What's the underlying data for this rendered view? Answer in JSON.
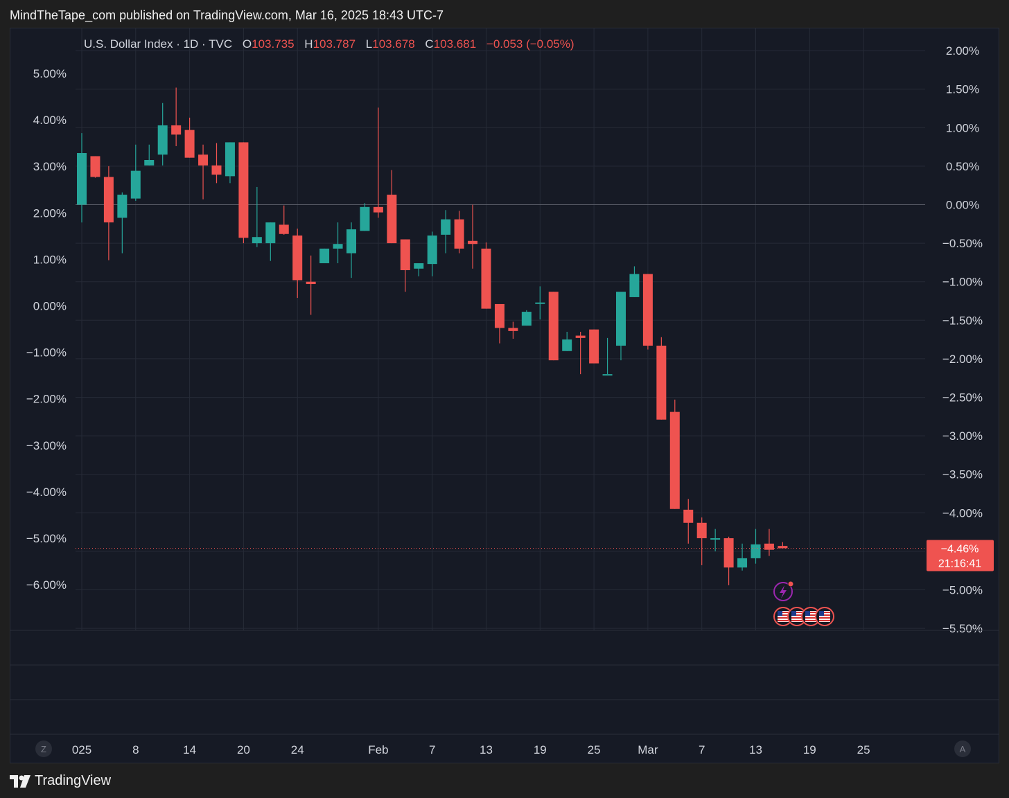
{
  "header": {
    "published": "MindTheTape_com published on TradingView.com, Mar 16, 2025 18:43 UTC-7"
  },
  "legend": {
    "symbol": "U.S. Dollar Index · 1D · TVC",
    "o_label": "O",
    "o_value": "103.735",
    "h_label": "H",
    "h_value": "103.787",
    "l_label": "L",
    "l_value": "103.678",
    "c_label": "C",
    "c_value": "103.681",
    "change": "−0.053 (−0.05%)"
  },
  "price_badge": {
    "value": "−4.46%",
    "countdown": "21:16:41"
  },
  "footer": {
    "brand": "TradingView",
    "z_button": "Z",
    "a_button": "A"
  },
  "colors": {
    "up": "#26a69a",
    "down": "#ef5350",
    "background": "#161a25",
    "grid": "#262b37",
    "text": "#d1d4dc"
  },
  "chart_data": {
    "type": "candlestick",
    "symbol": "U.S. Dollar Index",
    "interval": "1D",
    "unit": "% change",
    "left_axis": {
      "ticks": [
        "5.00%",
        "4.00%",
        "3.00%",
        "2.00%",
        "1.00%",
        "0.00%",
        "−1.00%",
        "−2.00%",
        "−3.00%",
        "−4.00%",
        "−5.00%",
        "−6.00%"
      ],
      "range": [
        -6.9,
        5.2
      ]
    },
    "right_axis": {
      "ticks": [
        "2.00%",
        "1.50%",
        "1.00%",
        "0.50%",
        "0.00%",
        "−0.50%",
        "−1.00%",
        "−1.50%",
        "−2.00%",
        "−2.50%",
        "−3.00%",
        "−3.50%",
        "−4.00%",
        "−4.50%",
        "−5.00%",
        "−5.50%"
      ],
      "range": [
        -5.55,
        2.05
      ]
    },
    "x_ticks": [
      {
        "label": "025",
        "i": 0
      },
      {
        "label": "8",
        "i": 4
      },
      {
        "label": "14",
        "i": 8
      },
      {
        "label": "20",
        "i": 12
      },
      {
        "label": "24",
        "i": 16
      },
      {
        "label": "Feb",
        "i": 22
      },
      {
        "label": "7",
        "i": 26
      },
      {
        "label": "13",
        "i": 30
      },
      {
        "label": "19",
        "i": 34
      },
      {
        "label": "25",
        "i": 38
      },
      {
        "label": "Mar",
        "i": 42
      },
      {
        "label": "7",
        "i": 46
      },
      {
        "label": "13",
        "i": 50
      },
      {
        "label": "19",
        "i": 54
      },
      {
        "label": "25",
        "i": 58
      }
    ],
    "candles": [
      {
        "o": 0.0,
        "h": 0.93,
        "l": -0.23,
        "c": 0.67
      },
      {
        "o": 0.63,
        "h": 0.63,
        "l": 0.35,
        "c": 0.36
      },
      {
        "o": 0.36,
        "h": 0.5,
        "l": -0.72,
        "c": -0.23
      },
      {
        "o": -0.17,
        "h": 0.16,
        "l": -0.63,
        "c": 0.13
      },
      {
        "o": 0.08,
        "h": 0.78,
        "l": 0.05,
        "c": 0.44
      },
      {
        "o": 0.51,
        "h": 0.78,
        "l": 0.51,
        "c": 0.58
      },
      {
        "o": 0.65,
        "h": 1.32,
        "l": 0.51,
        "c": 1.03
      },
      {
        "o": 1.03,
        "h": 1.52,
        "l": 0.76,
        "c": 0.91
      },
      {
        "o": 0.97,
        "h": 1.13,
        "l": 0.61,
        "c": 0.61
      },
      {
        "o": 0.65,
        "h": 0.78,
        "l": 0.07,
        "c": 0.51
      },
      {
        "o": 0.51,
        "h": 0.8,
        "l": 0.28,
        "c": 0.39
      },
      {
        "o": 0.37,
        "h": 0.81,
        "l": 0.28,
        "c": 0.81
      },
      {
        "o": 0.81,
        "h": 0.81,
        "l": -0.5,
        "c": -0.43
      },
      {
        "o": -0.5,
        "h": 0.23,
        "l": -0.55,
        "c": -0.42
      },
      {
        "o": -0.5,
        "h": -0.23,
        "l": -0.73,
        "c": -0.23
      },
      {
        "o": -0.26,
        "h": -0.01,
        "l": -0.39,
        "c": -0.38
      },
      {
        "o": -0.4,
        "h": -0.31,
        "l": -1.21,
        "c": -0.98
      },
      {
        "o": -1.0,
        "h": -0.66,
        "l": -1.43,
        "c": -1.03
      },
      {
        "o": -0.76,
        "h": -0.57,
        "l": -0.76,
        "c": -0.57
      },
      {
        "o": -0.57,
        "h": -0.23,
        "l": -0.76,
        "c": -0.51
      },
      {
        "o": -0.63,
        "h": -0.23,
        "l": -0.95,
        "c": -0.32
      },
      {
        "o": -0.34,
        "h": 0.02,
        "l": -0.34,
        "c": -0.03
      },
      {
        "o": -0.03,
        "h": 1.26,
        "l": -0.17,
        "c": -0.1
      },
      {
        "o": 0.13,
        "h": 0.45,
        "l": -0.5,
        "c": -0.5
      },
      {
        "o": -0.45,
        "h": -0.45,
        "l": -1.13,
        "c": -0.85
      },
      {
        "o": -0.83,
        "h": -0.8,
        "l": -0.93,
        "c": -0.76
      },
      {
        "o": -0.77,
        "h": -0.35,
        "l": -0.93,
        "c": -0.4
      },
      {
        "o": -0.39,
        "h": -0.07,
        "l": -0.63,
        "c": -0.19
      },
      {
        "o": -0.19,
        "h": -0.08,
        "l": -0.63,
        "c": -0.57
      },
      {
        "o": -0.47,
        "h": 0.0,
        "l": -0.83,
        "c": -0.51
      },
      {
        "o": -0.57,
        "h": -0.49,
        "l": -1.35,
        "c": -1.35
      },
      {
        "o": -1.29,
        "h": -1.29,
        "l": -1.8,
        "c": -1.6
      },
      {
        "o": -1.6,
        "h": -1.52,
        "l": -1.74,
        "c": -1.64
      },
      {
        "o": -1.57,
        "h": -1.37,
        "l": -1.57,
        "c": -1.39
      },
      {
        "o": -1.27,
        "h": -1.06,
        "l": -1.49,
        "c": -1.27
      },
      {
        "o": -1.13,
        "h": -1.13,
        "l": -2.02,
        "c": -2.02
      },
      {
        "o": -1.9,
        "h": -1.65,
        "l": -1.9,
        "c": -1.75
      },
      {
        "o": -1.7,
        "h": -1.65,
        "l": -2.2,
        "c": -1.73
      },
      {
        "o": -1.62,
        "h": -1.62,
        "l": -2.06,
        "c": -2.06
      },
      {
        "o": -2.2,
        "h": -1.73,
        "l": -2.2,
        "c": -2.2
      },
      {
        "o": -1.83,
        "h": -1.2,
        "l": -2.02,
        "c": -1.13
      },
      {
        "o": -1.2,
        "h": -0.8,
        "l": -1.2,
        "c": -0.9
      },
      {
        "o": -0.9,
        "h": -0.9,
        "l": -1.88,
        "c": -1.83
      },
      {
        "o": -1.83,
        "h": -1.72,
        "l": -2.79,
        "c": -2.79
      },
      {
        "o": -2.69,
        "h": -2.53,
        "l": -3.95,
        "c": -3.95
      },
      {
        "o": -3.96,
        "h": -3.82,
        "l": -4.4,
        "c": -4.13
      },
      {
        "o": -4.13,
        "h": -4.06,
        "l": -4.68,
        "c": -4.33
      },
      {
        "o": -4.33,
        "h": -4.21,
        "l": -4.5,
        "c": -4.33
      },
      {
        "o": -4.33,
        "h": -4.31,
        "l": -4.94,
        "c": -4.71
      },
      {
        "o": -4.71,
        "h": -4.4,
        "l": -4.75,
        "c": -4.59
      },
      {
        "o": -4.59,
        "h": -4.21,
        "l": -4.66,
        "c": -4.41
      },
      {
        "o": -4.4,
        "h": -4.21,
        "l": -4.56,
        "c": -4.48
      },
      {
        "o": -4.43,
        "h": -4.38,
        "l": -4.46,
        "c": -4.46
      }
    ],
    "current_value": -4.46
  }
}
